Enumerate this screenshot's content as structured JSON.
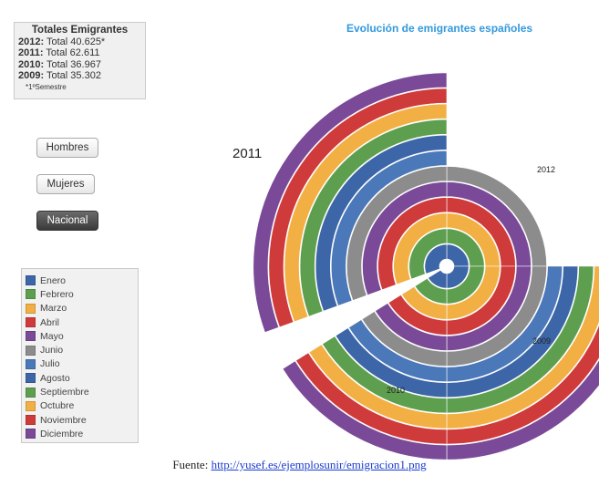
{
  "totals_box": {
    "title": "Totales Emigrantes",
    "rows": [
      {
        "year": "2012:",
        "text": " Total 40.625*"
      },
      {
        "year": "2011:",
        "text": " Total 62.611"
      },
      {
        "year": "2010:",
        "text": " Total 36.967"
      },
      {
        "year": "2009:",
        "text": " Total 35.302"
      }
    ],
    "note": "*1ºSemestre"
  },
  "buttons": {
    "hombres": "Hombres",
    "mujeres": "Mujeres",
    "nacional": "Nacional"
  },
  "legend": [
    {
      "label": "Enero",
      "color": "#3c66a8"
    },
    {
      "label": "Febrero",
      "color": "#5e9f4f"
    },
    {
      "label": "Marzo",
      "color": "#f2b044"
    },
    {
      "label": "Abril",
      "color": "#cf3b3b"
    },
    {
      "label": "Mayo",
      "color": "#7a4a98"
    },
    {
      "label": "Junio",
      "color": "#8c8c8c"
    },
    {
      "label": "Julio",
      "color": "#4a78b8"
    },
    {
      "label": "Agosto",
      "color": "#3c66a8"
    },
    {
      "label": "Septiembre",
      "color": "#5e9f4f"
    },
    {
      "label": "Octubre",
      "color": "#f2b044"
    },
    {
      "label": "Noviembre",
      "color": "#cf3b3b"
    },
    {
      "label": "Diciembre",
      "color": "#7a4a98"
    }
  ],
  "chart_data": {
    "type": "radial-bar",
    "title": "Evolución de emigrantes españoles",
    "years": [
      "2012",
      "2011",
      "2010",
      "2009"
    ],
    "year_labels": {
      "y2011": "2011",
      "y2012": "2012",
      "y2009": "2009",
      "y2010": "2010"
    },
    "rings": {
      "y2011": 12,
      "y2012": 6,
      "y2010": 12,
      "y2009": 12
    }
  },
  "caption": {
    "prefix": "Fuente: ",
    "link": "http://yusef.es/ejemplosunir/emigracion1.png"
  }
}
